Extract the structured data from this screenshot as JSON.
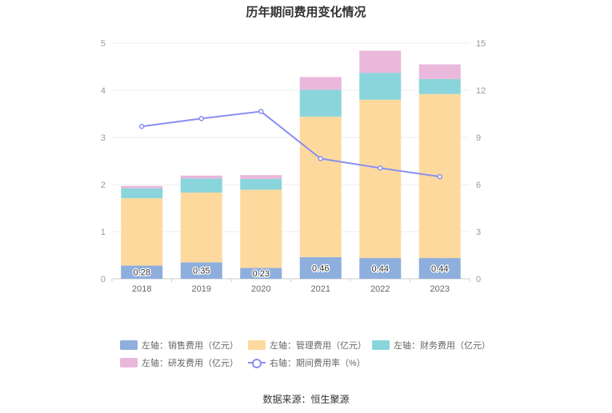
{
  "chart_data": {
    "type": "bar",
    "title": "历年期间费用变化情况",
    "categories": [
      "2018",
      "2019",
      "2020",
      "2021",
      "2022",
      "2023"
    ],
    "y_left": {
      "ticks": [
        "0",
        "1",
        "2",
        "3",
        "4",
        "5"
      ],
      "ylim": [
        0,
        5
      ]
    },
    "y_right": {
      "ticks": [
        "0",
        "3",
        "6",
        "9",
        "12",
        "15"
      ],
      "ylim": [
        0,
        15
      ]
    },
    "series": [
      {
        "name": "左轴：销售费用（亿元）",
        "type": "bar",
        "axis": "left",
        "color": "#8eaedd",
        "values": [
          0.28,
          0.35,
          0.23,
          0.46,
          0.44,
          0.44
        ],
        "labels": [
          "0.28",
          "0.35",
          "0.23",
          "0.46",
          "0.44",
          "0.44"
        ]
      },
      {
        "name": "左轴：管理费用（亿元）",
        "type": "bar",
        "axis": "left",
        "color": "#fed99e",
        "values": [
          1.43,
          1.48,
          1.66,
          2.98,
          3.36,
          3.48
        ]
      },
      {
        "name": "左轴：财务费用（亿元）",
        "type": "bar",
        "axis": "left",
        "color": "#8ad5dc",
        "values": [
          0.21,
          0.3,
          0.23,
          0.57,
          0.57,
          0.32
        ]
      },
      {
        "name": "左轴：研发费用（亿元）",
        "type": "bar",
        "axis": "left",
        "color": "#e9b8da",
        "values": [
          0.05,
          0.06,
          0.08,
          0.27,
          0.47,
          0.31
        ]
      },
      {
        "name": "右轴：期间费用率（%）",
        "type": "line",
        "axis": "right",
        "color": "#8a8ff0",
        "values": [
          9.7,
          10.2,
          10.65,
          7.65,
          7.05,
          6.5
        ]
      }
    ],
    "legend_placement": "bottom",
    "grid": true
  },
  "source": "数据来源：恒生聚源"
}
